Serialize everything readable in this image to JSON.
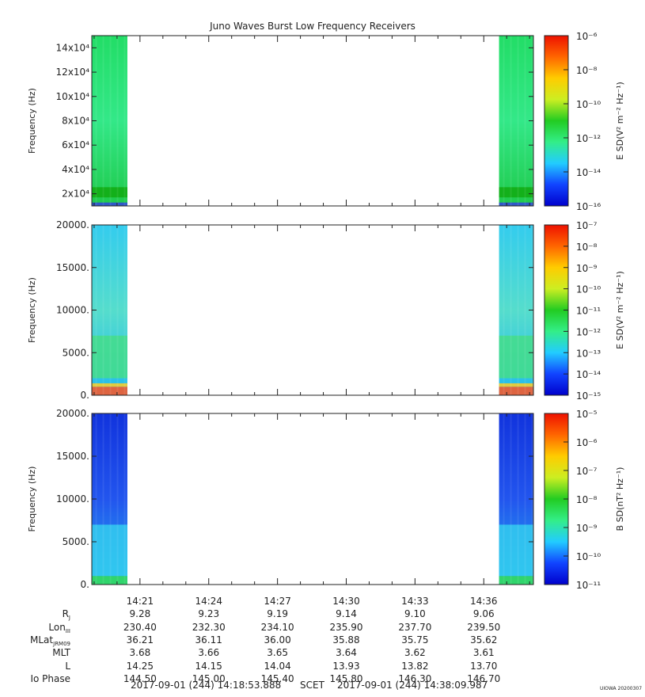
{
  "title": "Juno Waves Burst Low Frequency Receivers",
  "stamp": "UIOWA 20200307",
  "time_footer": {
    "start": "2017-09-01 (244) 14:18:53.888",
    "scet": "SCET",
    "end": "2017-09-01 (244) 14:38:09.987"
  },
  "ephemeris": {
    "labels": [
      "R",
      "Lon",
      "MLat",
      "MLT",
      "L",
      "Io Phase"
    ],
    "label_subs": [
      "J",
      "III",
      "JRM09",
      "",
      "",
      ""
    ],
    "times": [
      "14:21",
      "14:24",
      "14:27",
      "14:30",
      "14:33",
      "14:36"
    ],
    "rows": [
      [
        "9.28",
        "9.23",
        "9.19",
        "9.14",
        "9.10",
        "9.06"
      ],
      [
        "230.40",
        "232.30",
        "234.10",
        "235.90",
        "237.70",
        "239.50"
      ],
      [
        "36.21",
        "36.11",
        "36.00",
        "35.88",
        "35.75",
        "35.62"
      ],
      [
        "3.68",
        "3.66",
        "3.65",
        "3.64",
        "3.62",
        "3.61"
      ],
      [
        "14.25",
        "14.15",
        "14.04",
        "13.93",
        "13.82",
        "13.70"
      ],
      [
        "144.50",
        "145.00",
        "145.40",
        "145.80",
        "146.30",
        "146.70"
      ]
    ]
  },
  "chart_data": [
    {
      "type": "heatmap",
      "ylabel": "Frequency (Hz)",
      "colorbar_label": "E SD(V² m⁻² Hz⁻¹)",
      "y_ticks": [
        "14x10⁴",
        "12x10⁴",
        "10x10⁴",
        "8x10⁴",
        "6x10⁴",
        "4x10⁴",
        "2x10⁴"
      ],
      "y_tick_values": [
        140000,
        120000,
        100000,
        80000,
        60000,
        40000,
        20000
      ],
      "ylim": [
        10000,
        150000
      ],
      "colorbar_ticks": [
        "10⁻⁶",
        "10⁻⁸",
        "10⁻¹⁰",
        "10⁻¹²",
        "10⁻¹⁴",
        "10⁻¹⁶"
      ],
      "colorbar_exponents": [
        -6,
        -8,
        -10,
        -12,
        -14,
        -16
      ],
      "data_segments": [
        [
          "14:18:53",
          "14:20:27"
        ],
        [
          "14:36:40",
          "14:38:09"
        ]
      ],
      "color": [
        "#22dd66",
        "#33e888",
        "#1fc94a"
      ],
      "bands": [
        [
          0.05,
          0.11,
          "#11aa11"
        ],
        [
          0.0,
          0.02,
          "#3344dd"
        ]
      ]
    },
    {
      "type": "heatmap",
      "ylabel": "Frequency (Hz)",
      "colorbar_label": "E SD(V² m⁻² Hz⁻¹)",
      "y_ticks": [
        "20000.",
        "15000.",
        "10000.",
        "5000.",
        "0."
      ],
      "y_tick_values": [
        20000,
        15000,
        10000,
        5000,
        0
      ],
      "ylim": [
        0,
        20000
      ],
      "colorbar_ticks": [
        "10⁻⁷",
        "10⁻⁸",
        "10⁻⁹",
        "10⁻¹⁰",
        "10⁻¹¹",
        "10⁻¹²",
        "10⁻¹³",
        "10⁻¹⁴",
        "10⁻¹⁵"
      ],
      "colorbar_exponents": [
        -7,
        -8,
        -9,
        -10,
        -11,
        -12,
        -13,
        -14,
        -15
      ],
      "data_segments": [
        [
          "14:18:53",
          "14:20:27"
        ],
        [
          "14:36:40",
          "14:38:09"
        ]
      ],
      "color": [
        "#33ccee",
        "#55ddcc",
        "#22bbee"
      ],
      "bands": [
        [
          0.0,
          0.05,
          "#ff5522"
        ],
        [
          0.05,
          0.07,
          "#ffcc22"
        ],
        [
          0.1,
          0.35,
          "#44dd88"
        ]
      ]
    },
    {
      "type": "heatmap",
      "ylabel": "Frequency (Hz)",
      "colorbar_label": "B SD(nT² Hz⁻¹)",
      "y_ticks": [
        "20000.",
        "15000.",
        "10000.",
        "5000.",
        "0."
      ],
      "y_tick_values": [
        20000,
        15000,
        10000,
        5000,
        0
      ],
      "ylim": [
        0,
        20000
      ],
      "colorbar_ticks": [
        "10⁻⁵",
        "10⁻⁶",
        "10⁻⁷",
        "10⁻⁸",
        "10⁻⁹",
        "10⁻¹⁰",
        "10⁻¹¹"
      ],
      "colorbar_exponents": [
        -5,
        -6,
        -7,
        -8,
        -9,
        -10,
        -11
      ],
      "data_segments": [
        [
          "14:18:53",
          "14:20:27"
        ],
        [
          "14:36:40",
          "14:38:09"
        ]
      ],
      "color": [
        "#1133dd",
        "#2255ee",
        "#22aaee"
      ],
      "bands": [
        [
          0.0,
          0.05,
          "#33dd55"
        ],
        [
          0.05,
          0.35,
          "#33ccee"
        ]
      ]
    }
  ]
}
